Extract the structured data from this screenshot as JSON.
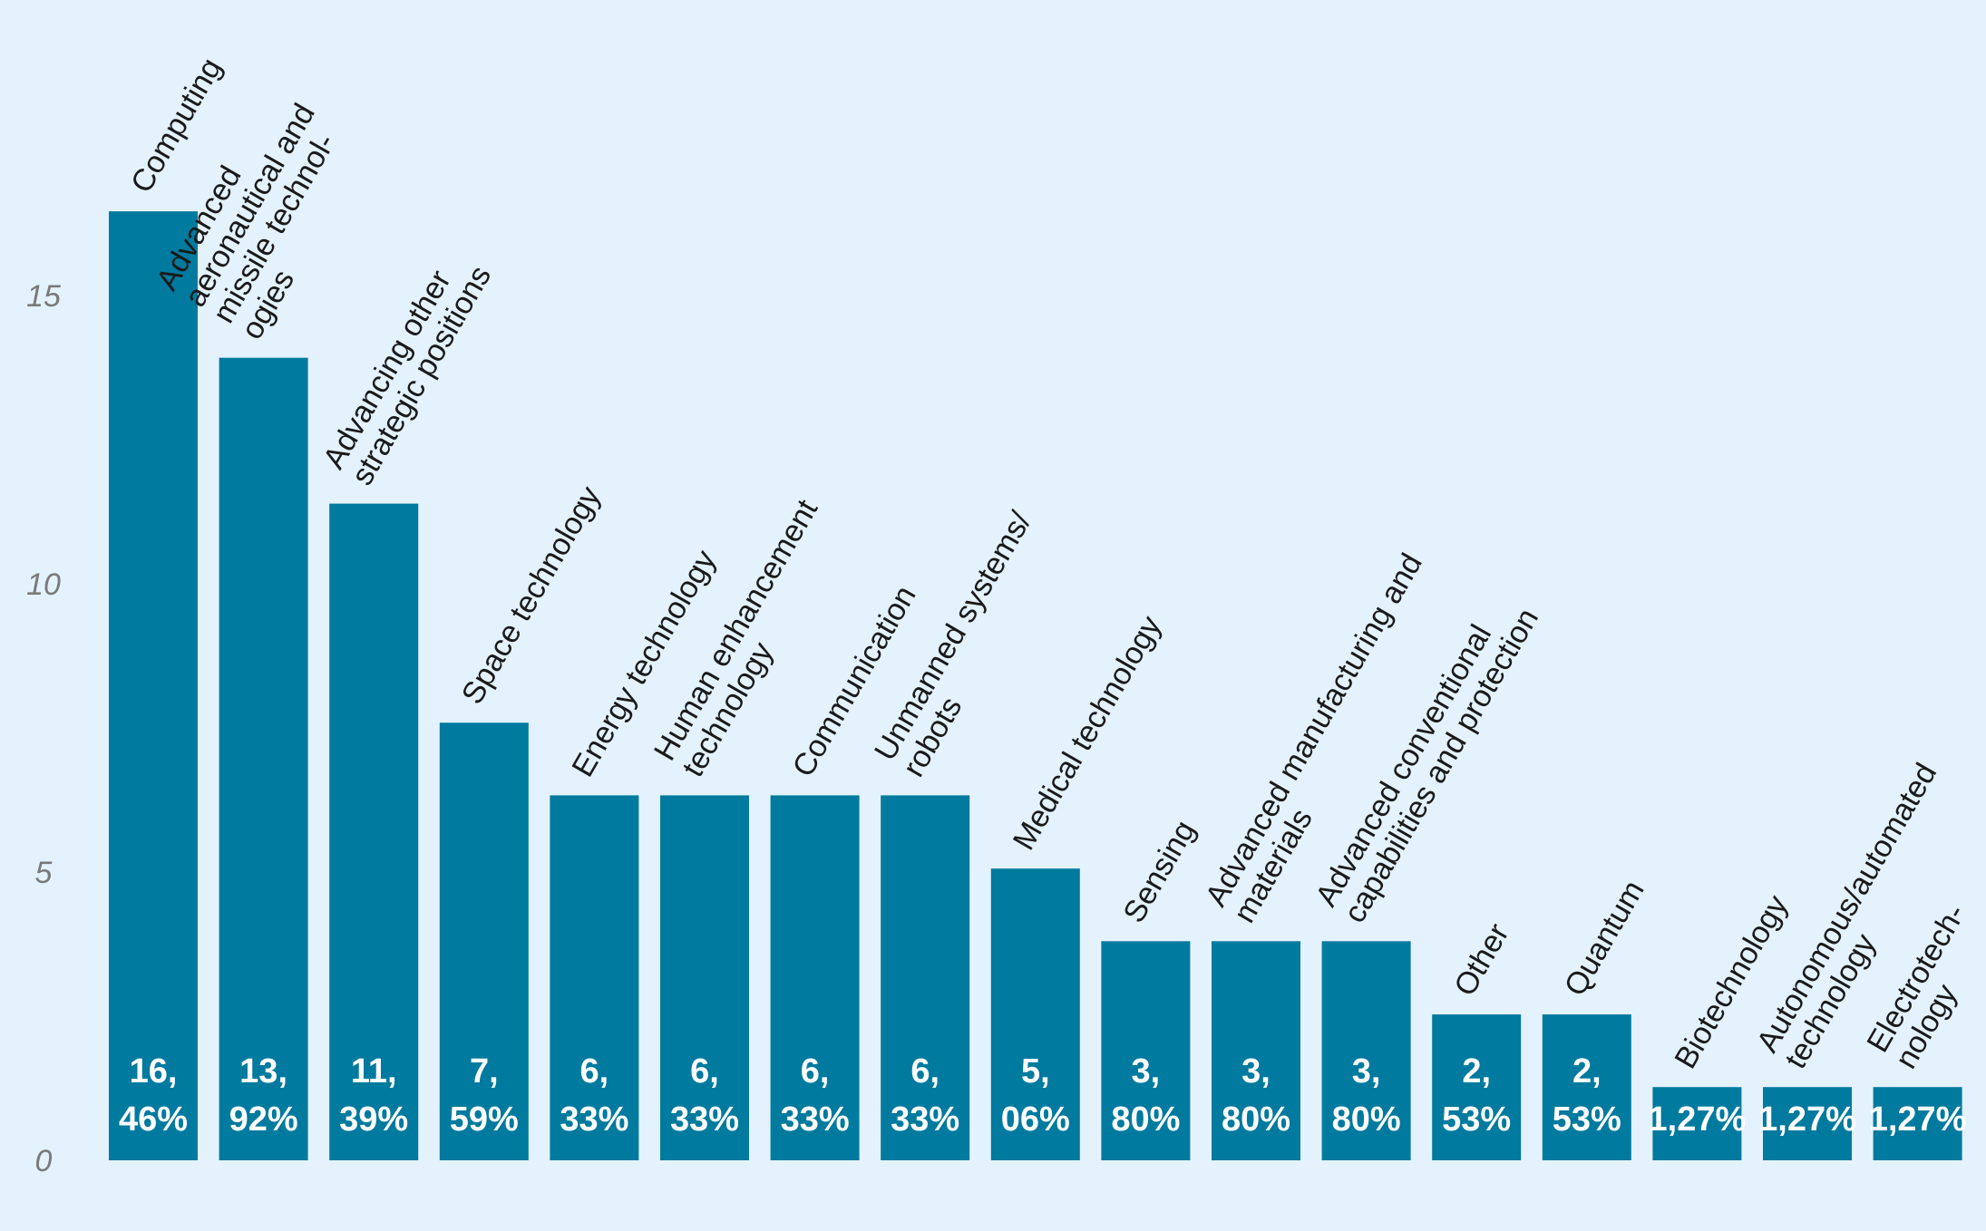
{
  "chart_data": {
    "type": "bar",
    "title": "",
    "xlabel": "",
    "ylabel": "",
    "ylim": [
      0,
      19.5
    ],
    "yticks": [
      0,
      5,
      10,
      15
    ],
    "grid": false,
    "legend": "none",
    "bar_color": "#007a9e",
    "background_color": "#e3f2fd",
    "categories": [
      [
        "Computing"
      ],
      [
        "Advanced",
        "aeronautical and",
        "missile technol-",
        "ogies"
      ],
      [
        "Advancing other",
        "strategic positions"
      ],
      [
        "Space technology"
      ],
      [
        "Energy technology"
      ],
      [
        "Human enhancement",
        "technology"
      ],
      [
        "Communication"
      ],
      [
        "Unmanned systems/",
        "robots"
      ],
      [
        "Medical technology"
      ],
      [
        "Sensing"
      ],
      [
        "Advanced manufacturing and",
        "materials"
      ],
      [
        "Advanced conventional",
        "capabilities and protection"
      ],
      [
        "Other"
      ],
      [
        "Quantum"
      ],
      [
        "Biotechnology"
      ],
      [
        "Autonomous/automated",
        "technology"
      ],
      [
        "Electrotech-",
        "nology"
      ]
    ],
    "values": [
      16.46,
      13.92,
      11.39,
      7.59,
      6.33,
      6.33,
      6.33,
      6.33,
      5.06,
      3.8,
      3.8,
      3.8,
      2.53,
      2.53,
      1.27,
      1.27,
      1.27
    ],
    "value_labels": [
      [
        "16,",
        "46%"
      ],
      [
        "13,",
        "92%"
      ],
      [
        "11,",
        "39%"
      ],
      [
        "7,",
        "59%"
      ],
      [
        "6,",
        "33%"
      ],
      [
        "6,",
        "33%"
      ],
      [
        "6,",
        "33%"
      ],
      [
        "6,",
        "33%"
      ],
      [
        "5,",
        "06%"
      ],
      [
        "3,",
        "80%"
      ],
      [
        "3,",
        "80%"
      ],
      [
        "3,",
        "80%"
      ],
      [
        "2,",
        "53%"
      ],
      [
        "2,",
        "53%"
      ],
      [
        "1,27%"
      ],
      [
        "1,27%"
      ],
      [
        "1,27%"
      ]
    ]
  }
}
